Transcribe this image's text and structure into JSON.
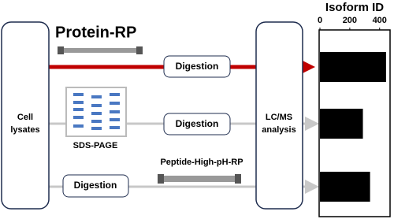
{
  "diagram": {
    "sources": [
      "Cell",
      "lysates"
    ],
    "instrument": [
      "LC/MS",
      "analysis"
    ],
    "methods": {
      "protein_rp": "Protein-RP",
      "sds_page": "SDS-PAGE",
      "peptide_rp": "Peptide-High-pH-RP"
    },
    "steps": [
      "Digestion",
      "Digestion",
      "Digestion"
    ]
  },
  "chart_data": {
    "type": "bar",
    "orientation": "horizontal",
    "title": "Isoform ID",
    "values": [
      443,
      288,
      336
    ],
    "color": "#000000",
    "xlim": [
      0,
      470
    ],
    "xticks": [
      0,
      200,
      400
    ]
  }
}
